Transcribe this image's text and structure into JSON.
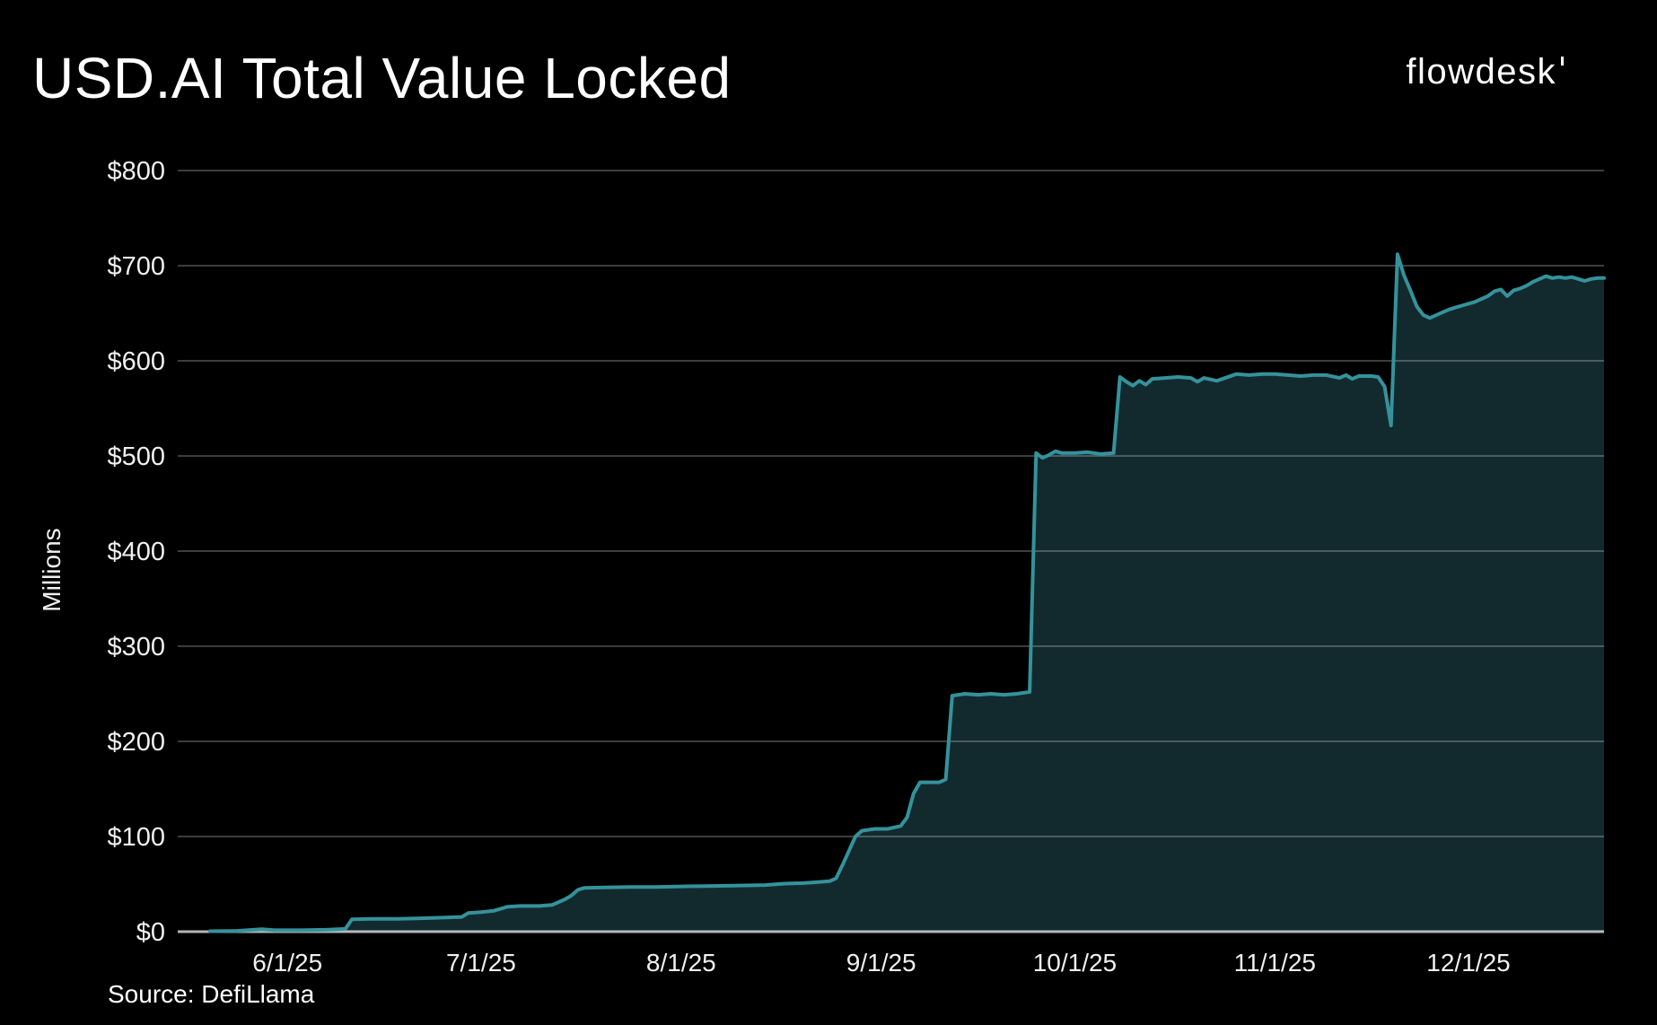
{
  "header": {
    "title": "USD.AI Total Value Locked",
    "brand": "flowdesk"
  },
  "footer": {
    "source": "Source: DefiLlama"
  },
  "colors": {
    "background": "#000000",
    "line": "#35929b",
    "fill": "#122a2e",
    "grid": "rgba(255,255,255,0.24)",
    "axis_zero": "rgba(255,255,255,0.70)",
    "text": "#f0f0f0"
  },
  "chart_data": {
    "type": "area",
    "title": "USD.AI Total Value Locked",
    "xlabel": "",
    "ylabel": "Millions",
    "ylim": [
      0,
      800
    ],
    "y_tick_interval": 100,
    "y_tick_labels": [
      "$0",
      "$100",
      "$200",
      "$300",
      "$400",
      "$500",
      "$600",
      "$700",
      "$800"
    ],
    "x_range": [
      "2025-05-15",
      "2025-12-22"
    ],
    "x_ticks": [
      {
        "date": "2025-06-01",
        "label": "6/1/25"
      },
      {
        "date": "2025-07-01",
        "label": "7/1/25"
      },
      {
        "date": "2025-08-01",
        "label": "8/1/25"
      },
      {
        "date": "2025-09-01",
        "label": "9/1/25"
      },
      {
        "date": "2025-10-01",
        "label": "10/1/25"
      },
      {
        "date": "2025-11-01",
        "label": "11/1/25"
      },
      {
        "date": "2025-12-01",
        "label": "12/1/25"
      }
    ],
    "grid": "horizontal",
    "legend": "none",
    "series": [
      {
        "name": "USD.AI Total Value Locked ($ millions)",
        "points": [
          [
            "2025-05-20",
            0.5
          ],
          [
            "2025-05-24",
            0.8
          ],
          [
            "2025-05-28",
            2.5
          ],
          [
            "2025-05-30",
            1.5
          ],
          [
            "2025-06-03",
            1.5
          ],
          [
            "2025-06-07",
            2
          ],
          [
            "2025-06-10",
            3
          ],
          [
            "2025-06-11",
            13
          ],
          [
            "2025-06-14",
            13.5
          ],
          [
            "2025-06-18",
            13.5
          ],
          [
            "2025-06-21",
            14
          ],
          [
            "2025-06-24",
            14.5
          ],
          [
            "2025-06-26",
            15
          ],
          [
            "2025-06-28",
            15.5
          ],
          [
            "2025-06-29",
            19.5
          ],
          [
            "2025-07-01",
            20.5
          ],
          [
            "2025-07-03",
            22
          ],
          [
            "2025-07-05",
            26
          ],
          [
            "2025-07-07",
            27
          ],
          [
            "2025-07-10",
            27
          ],
          [
            "2025-07-12",
            28
          ],
          [
            "2025-07-14",
            34
          ],
          [
            "2025-07-15",
            38
          ],
          [
            "2025-07-16",
            44
          ],
          [
            "2025-07-17",
            46
          ],
          [
            "2025-07-20",
            46.5
          ],
          [
            "2025-07-24",
            47
          ],
          [
            "2025-07-28",
            47
          ],
          [
            "2025-08-01",
            47.5
          ],
          [
            "2025-08-06",
            48
          ],
          [
            "2025-08-10",
            48.5
          ],
          [
            "2025-08-14",
            49
          ],
          [
            "2025-08-17",
            50.5
          ],
          [
            "2025-08-20",
            51
          ],
          [
            "2025-08-22",
            52
          ],
          [
            "2025-08-24",
            53
          ],
          [
            "2025-08-25",
            56
          ],
          [
            "2025-08-26",
            70
          ],
          [
            "2025-08-27",
            85
          ],
          [
            "2025-08-28",
            100
          ],
          [
            "2025-08-29",
            106
          ],
          [
            "2025-08-31",
            108
          ],
          [
            "2025-09-02",
            108
          ],
          [
            "2025-09-04",
            111
          ],
          [
            "2025-09-05",
            120
          ],
          [
            "2025-09-06",
            145
          ],
          [
            "2025-09-07",
            157
          ],
          [
            "2025-09-09",
            157
          ],
          [
            "2025-09-10",
            157
          ],
          [
            "2025-09-11",
            160
          ],
          [
            "2025-09-12",
            248
          ],
          [
            "2025-09-14",
            250
          ],
          [
            "2025-09-16",
            249
          ],
          [
            "2025-09-18",
            250
          ],
          [
            "2025-09-20",
            249
          ],
          [
            "2025-09-22",
            250
          ],
          [
            "2025-09-24",
            252
          ],
          [
            "2025-09-25",
            503
          ],
          [
            "2025-09-26",
            498
          ],
          [
            "2025-09-27",
            501
          ],
          [
            "2025-09-28",
            505
          ],
          [
            "2025-09-29",
            503
          ],
          [
            "2025-10-01",
            503
          ],
          [
            "2025-10-03",
            504
          ],
          [
            "2025-10-05",
            502
          ],
          [
            "2025-10-07",
            503
          ],
          [
            "2025-10-08",
            583
          ],
          [
            "2025-10-09",
            578
          ],
          [
            "2025-10-10",
            574
          ],
          [
            "2025-10-11",
            579
          ],
          [
            "2025-10-12",
            575
          ],
          [
            "2025-10-13",
            581
          ],
          [
            "2025-10-15",
            582
          ],
          [
            "2025-10-17",
            583
          ],
          [
            "2025-10-19",
            582
          ],
          [
            "2025-10-20",
            578
          ],
          [
            "2025-10-21",
            582
          ],
          [
            "2025-10-23",
            579
          ],
          [
            "2025-10-26",
            586
          ],
          [
            "2025-10-28",
            585
          ],
          [
            "2025-10-30",
            586
          ],
          [
            "2025-11-01",
            586
          ],
          [
            "2025-11-03",
            585
          ],
          [
            "2025-11-05",
            584
          ],
          [
            "2025-11-07",
            585
          ],
          [
            "2025-11-09",
            585
          ],
          [
            "2025-11-11",
            582
          ],
          [
            "2025-11-12",
            585
          ],
          [
            "2025-11-13",
            581
          ],
          [
            "2025-11-14",
            584
          ],
          [
            "2025-11-16",
            584
          ],
          [
            "2025-11-17",
            583
          ],
          [
            "2025-11-18",
            573
          ],
          [
            "2025-11-19",
            532
          ],
          [
            "2025-11-20",
            712
          ],
          [
            "2025-11-21",
            690
          ],
          [
            "2025-11-22",
            674
          ],
          [
            "2025-11-23",
            657
          ],
          [
            "2025-11-24",
            648
          ],
          [
            "2025-11-25",
            645
          ],
          [
            "2025-11-26",
            648
          ],
          [
            "2025-11-27",
            651
          ],
          [
            "2025-11-28",
            654
          ],
          [
            "2025-11-29",
            656
          ],
          [
            "2025-11-30",
            658
          ],
          [
            "2025-12-01",
            660
          ],
          [
            "2025-12-02",
            662
          ],
          [
            "2025-12-03",
            665
          ],
          [
            "2025-12-04",
            668
          ],
          [
            "2025-12-05",
            673
          ],
          [
            "2025-12-06",
            675
          ],
          [
            "2025-12-07",
            668
          ],
          [
            "2025-12-08",
            674
          ],
          [
            "2025-12-09",
            676
          ],
          [
            "2025-12-10",
            679
          ],
          [
            "2025-12-11",
            683
          ],
          [
            "2025-12-12",
            686
          ],
          [
            "2025-12-13",
            689
          ],
          [
            "2025-12-14",
            687
          ],
          [
            "2025-12-15",
            688
          ],
          [
            "2025-12-16",
            687
          ],
          [
            "2025-12-17",
            688
          ],
          [
            "2025-12-18",
            686
          ],
          [
            "2025-12-19",
            684
          ],
          [
            "2025-12-20",
            686
          ],
          [
            "2025-12-21",
            687
          ],
          [
            "2025-12-22",
            687
          ]
        ]
      }
    ]
  }
}
